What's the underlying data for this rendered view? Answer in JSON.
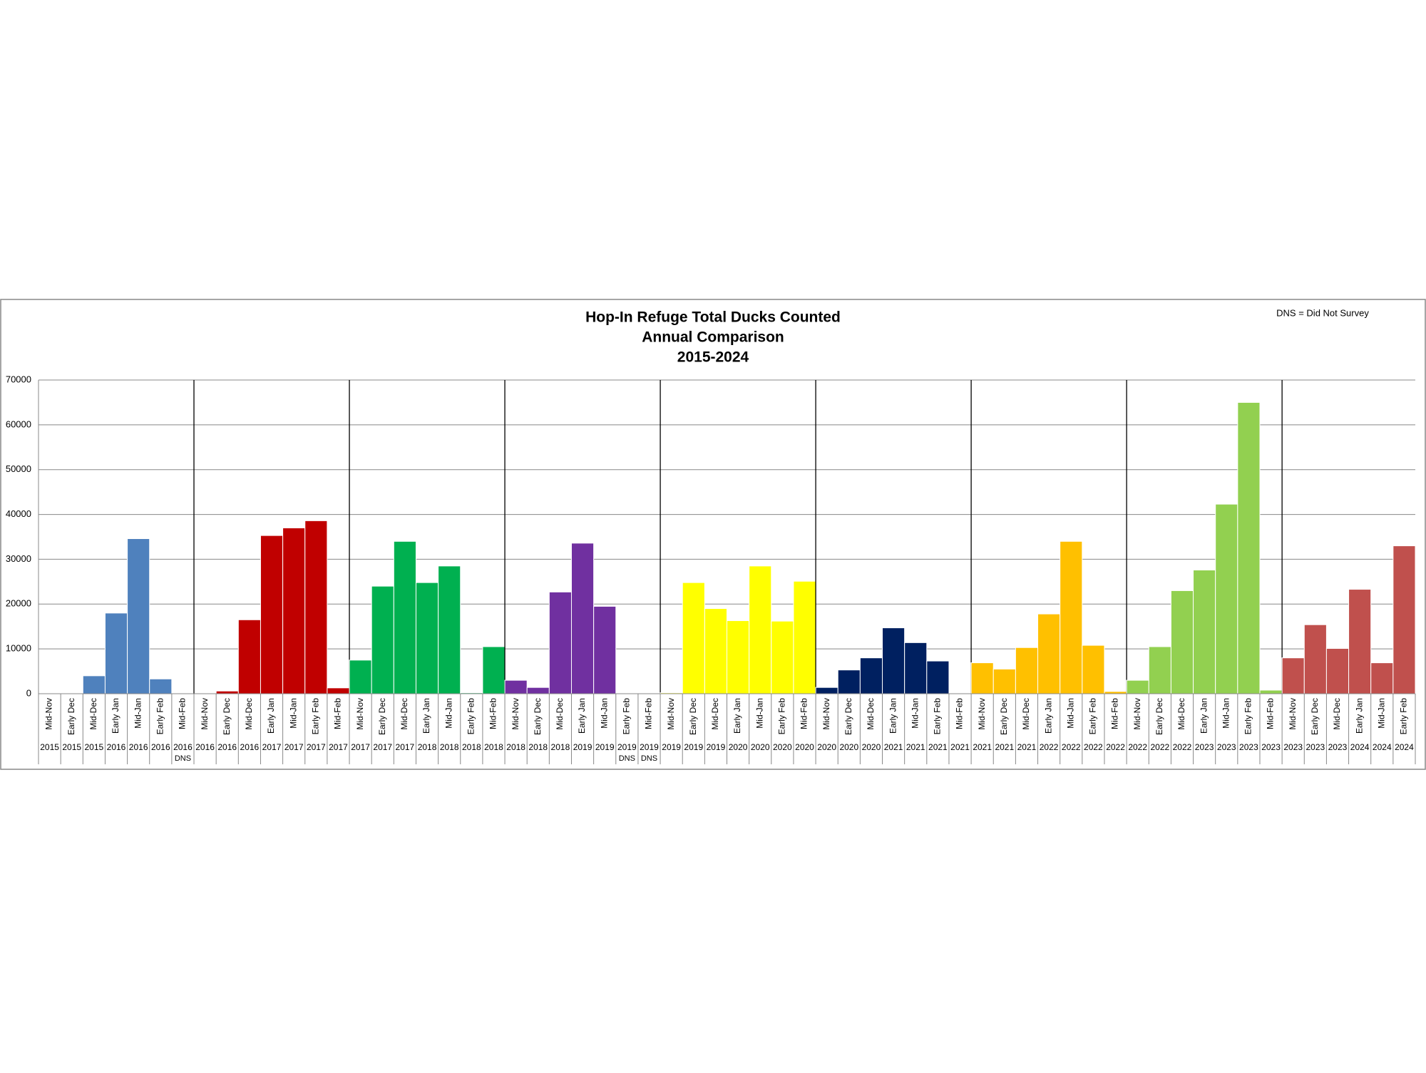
{
  "chart_data": {
    "type": "bar",
    "title": [
      "Hop-In Refuge Total Ducks Counted",
      "Annual Comparison",
      "2015-2024"
    ],
    "note": "DNS = Did Not Survey",
    "categories": [
      "Mid-Nov",
      "Early Dec",
      "Mid-Dec",
      "Early Jan",
      "Mid-Jan",
      "Early Feb",
      "Mid-Feb",
      "Mid-Nov",
      "Early Dec",
      "Mid-Dec",
      "Early Jan",
      "Mid-Jan",
      "Early Feb",
      "Mid-Feb",
      "Mid-Nov",
      "Early Dec",
      "Mid-Dec",
      "Early Jan",
      "Mid-Jan",
      "Early Feb",
      "Mid-Feb",
      "Mid-Nov",
      "Early Dec",
      "Mid-Dec",
      "Early Jan",
      "Mid-Jan",
      "Early Feb",
      "Mid-Feb",
      "Mid-Nov",
      "Early Dec",
      "Mid-Dec",
      "Early Jan",
      "Mid-Jan",
      "Early Feb",
      "Mid-Feb",
      "Mid-Nov",
      "Early Dec",
      "Mid-Dec",
      "Early Jan",
      "Mid-Jan",
      "Early Feb",
      "Mid-Feb",
      "Mid-Nov",
      "Early Dec",
      "Mid-Dec",
      "Early Jan",
      "Mid-Jan",
      "Early Feb",
      "Mid-Feb",
      "Mid-Nov",
      "Early Dec",
      "Mid-Dec",
      "Early Jan",
      "Mid-Jan",
      "Early Feb",
      "Mid-Feb",
      "Mid-Nov",
      "Early Dec",
      "Mid-Dec",
      "Early Jan",
      "Mid-Jan",
      "Early Feb"
    ],
    "years": [
      "2015",
      "2015",
      "2015",
      "2016",
      "2016",
      "2016",
      "2016",
      "2016",
      "2016",
      "2016",
      "2017",
      "2017",
      "2017",
      "2017",
      "2017",
      "2017",
      "2017",
      "2018",
      "2018",
      "2018",
      "2018",
      "2018",
      "2018",
      "2018",
      "2019",
      "2019",
      "2019",
      "2019",
      "2019",
      "2019",
      "2019",
      "2020",
      "2020",
      "2020",
      "2020",
      "2020",
      "2020",
      "2020",
      "2021",
      "2021",
      "2021",
      "2021",
      "2021",
      "2021",
      "2021",
      "2022",
      "2022",
      "2022",
      "2022",
      "2022",
      "2022",
      "2022",
      "2023",
      "2023",
      "2023",
      "2023",
      "2023",
      "2023",
      "2023",
      "2024",
      "2024",
      "2024"
    ],
    "notes": [
      null,
      null,
      null,
      null,
      null,
      null,
      "DNS",
      null,
      null,
      null,
      null,
      null,
      null,
      null,
      null,
      null,
      null,
      null,
      null,
      null,
      null,
      null,
      null,
      null,
      null,
      null,
      "DNS",
      "DNS",
      null,
      null,
      null,
      null,
      null,
      null,
      null,
      null,
      null,
      null,
      null,
      null,
      null,
      null,
      null,
      null,
      null,
      null,
      null,
      null,
      null,
      null,
      null,
      null,
      null,
      null,
      null,
      null,
      null,
      null,
      null,
      null,
      null,
      null
    ],
    "values": [
      0,
      0,
      4000,
      18000,
      34600,
      3300,
      null,
      0,
      600,
      16500,
      35300,
      37000,
      38600,
      1300,
      7500,
      24000,
      34000,
      24800,
      28500,
      200,
      10500,
      3000,
      1400,
      22700,
      33600,
      19500,
      null,
      null,
      200,
      24800,
      19000,
      16300,
      28500,
      16200,
      25100,
      1400,
      5300,
      8000,
      14700,
      11400,
      7300,
      0,
      6900,
      5500,
      10300,
      17800,
      34000,
      10800,
      500,
      3000,
      10500,
      23000,
      27600,
      42300,
      65000,
      800,
      8000,
      15400,
      10100,
      23300,
      6900,
      33000
    ],
    "colors": [
      "#4f81bd",
      "#4f81bd",
      "#4f81bd",
      "#4f81bd",
      "#4f81bd",
      "#4f81bd",
      "#4f81bd",
      "#c00000",
      "#c00000",
      "#c00000",
      "#c00000",
      "#c00000",
      "#c00000",
      "#c00000",
      "#00b050",
      "#00b050",
      "#00b050",
      "#00b050",
      "#00b050",
      "#00b050",
      "#00b050",
      "#7030a0",
      "#7030a0",
      "#7030a0",
      "#7030a0",
      "#7030a0",
      "#7030a0",
      "#7030a0",
      "#ffff00",
      "#ffff00",
      "#ffff00",
      "#ffff00",
      "#ffff00",
      "#ffff00",
      "#ffff00",
      "#002060",
      "#002060",
      "#002060",
      "#002060",
      "#002060",
      "#002060",
      "#002060",
      "#ffc000",
      "#ffc000",
      "#ffc000",
      "#ffc000",
      "#ffc000",
      "#ffc000",
      "#ffc000",
      "#92d050",
      "#92d050",
      "#92d050",
      "#92d050",
      "#92d050",
      "#92d050",
      "#92d050",
      "#c0504d",
      "#c0504d",
      "#c0504d",
      "#c0504d",
      "#c0504d",
      "#c0504d"
    ],
    "ylim": [
      0,
      70000
    ],
    "yticks": [
      0,
      10000,
      20000,
      30000,
      40000,
      50000,
      60000,
      70000
    ],
    "grid": true
  }
}
